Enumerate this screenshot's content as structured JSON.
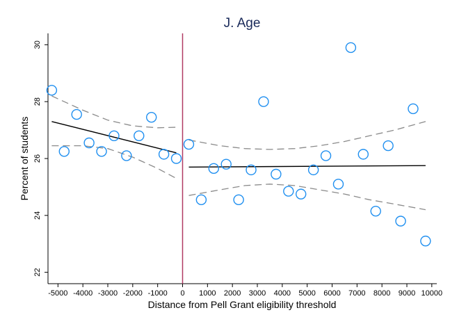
{
  "chart_data": {
    "type": "scatter",
    "title": "J. Age",
    "xlabel": "Distance from Pell Grant eligibility threshold",
    "ylabel": "Percent of students",
    "xlim": [
      -5400,
      10200
    ],
    "ylim": [
      21.6,
      30.4
    ],
    "x_ticks": [
      -5000,
      -4000,
      -3000,
      -2000,
      -1000,
      0,
      1000,
      2000,
      3000,
      4000,
      5000,
      6000,
      7000,
      8000,
      9000,
      10000
    ],
    "y_ticks": [
      22,
      24,
      26,
      28,
      30
    ],
    "threshold_x": 0,
    "grid": false,
    "legend": "none",
    "colors": {
      "points": "#1f8ff0",
      "fit": "#000000",
      "ci": "#8a8a8a",
      "threshold": "#b03a63",
      "title": "#1a2a5a",
      "background": "#ffffff"
    },
    "points": [
      {
        "x": -5250,
        "y": 28.4
      },
      {
        "x": -4750,
        "y": 26.25
      },
      {
        "x": -4250,
        "y": 27.55
      },
      {
        "x": -3750,
        "y": 26.55
      },
      {
        "x": -3250,
        "y": 26.25
      },
      {
        "x": -2750,
        "y": 26.8
      },
      {
        "x": -2250,
        "y": 26.1
      },
      {
        "x": -1750,
        "y": 26.8
      },
      {
        "x": -1250,
        "y": 27.45
      },
      {
        "x": -750,
        "y": 26.15
      },
      {
        "x": -250,
        "y": 26.0
      },
      {
        "x": 250,
        "y": 26.5
      },
      {
        "x": 750,
        "y": 24.55
      },
      {
        "x": 1250,
        "y": 25.65
      },
      {
        "x": 1750,
        "y": 25.8
      },
      {
        "x": 2250,
        "y": 24.55
      },
      {
        "x": 2750,
        "y": 25.6
      },
      {
        "x": 3250,
        "y": 28.0
      },
      {
        "x": 3750,
        "y": 25.45
      },
      {
        "x": 4250,
        "y": 24.85
      },
      {
        "x": 4750,
        "y": 24.75
      },
      {
        "x": 5250,
        "y": 25.6
      },
      {
        "x": 5750,
        "y": 26.1
      },
      {
        "x": 6250,
        "y": 25.1
      },
      {
        "x": 6750,
        "y": 29.9
      },
      {
        "x": 7250,
        "y": 26.15
      },
      {
        "x": 7750,
        "y": 24.15
      },
      {
        "x": 8250,
        "y": 26.45
      },
      {
        "x": 8750,
        "y": 23.8
      },
      {
        "x": 9250,
        "y": 27.75
      },
      {
        "x": 9750,
        "y": 23.1
      }
    ],
    "series": [
      {
        "role": "fit-left",
        "x": [
          -5250,
          -250
        ],
        "y": [
          27.3,
          26.2
        ]
      },
      {
        "role": "fit-right",
        "x": [
          250,
          9750
        ],
        "y": [
          25.7,
          25.75
        ]
      },
      {
        "role": "ci-upper-left",
        "x": [
          -5250,
          -4000,
          -3000,
          -2000,
          -1000,
          -250
        ],
        "y": [
          28.2,
          27.7,
          27.35,
          27.15,
          27.08,
          27.1
        ]
      },
      {
        "role": "ci-lower-left",
        "x": [
          -5250,
          -4000,
          -3000,
          -2000,
          -1000,
          -250
        ],
        "y": [
          26.45,
          26.45,
          26.35,
          26.05,
          25.65,
          25.3
        ]
      },
      {
        "role": "ci-upper-right",
        "x": [
          250,
          1500,
          2500,
          3500,
          4500,
          5500,
          6500,
          7500,
          8500,
          9750
        ],
        "y": [
          26.65,
          26.45,
          26.35,
          26.32,
          26.35,
          26.45,
          26.6,
          26.8,
          27.0,
          27.3
        ]
      },
      {
        "role": "ci-lower-right",
        "x": [
          250,
          1500,
          2500,
          3500,
          4500,
          5500,
          6500,
          7500,
          8500,
          9750
        ],
        "y": [
          24.7,
          24.9,
          25.05,
          25.1,
          25.05,
          24.9,
          24.75,
          24.55,
          24.4,
          24.2
        ]
      }
    ]
  }
}
